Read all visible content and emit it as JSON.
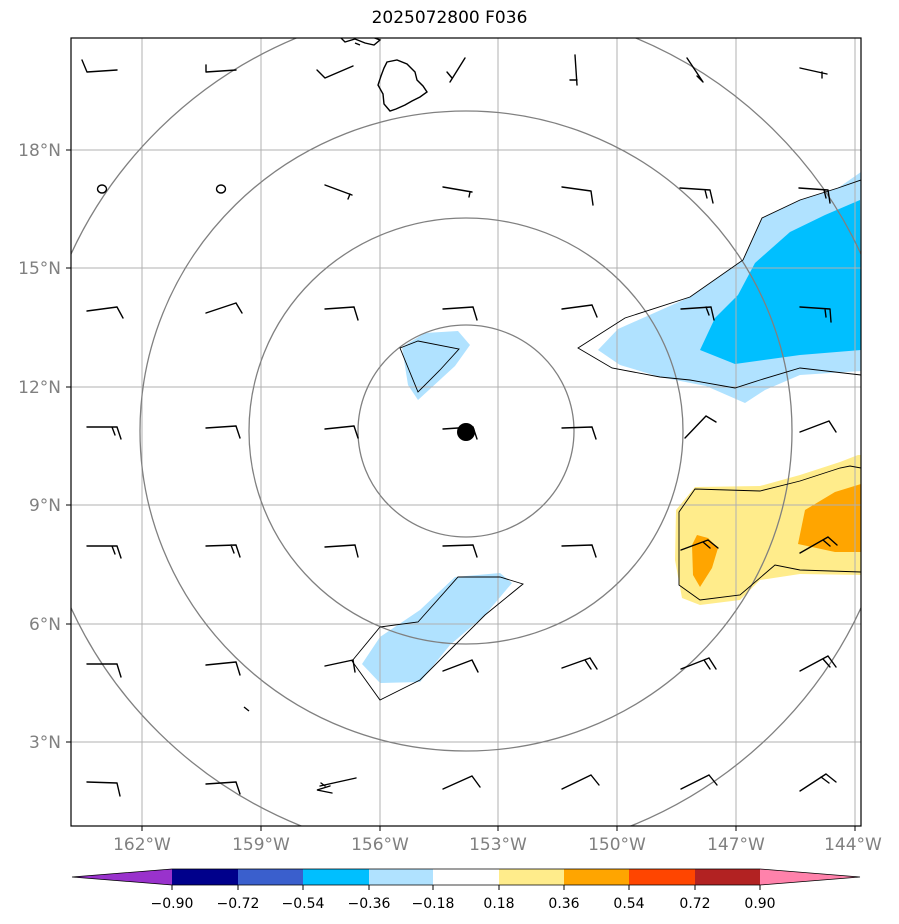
{
  "title": "2025072800 F036",
  "axes": {
    "lat_labels": [
      "3°N",
      "6°N",
      "9°N",
      "12°N",
      "15°N",
      "18°N"
    ],
    "lon_labels": [
      "162°W",
      "159°W",
      "156°W",
      "153°W",
      "150°W",
      "147°W",
      "144°W"
    ]
  },
  "colorbar": {
    "ticks": [
      "−0.90",
      "−0.72",
      "−0.54",
      "−0.36",
      "−0.18",
      "0.18",
      "0.36",
      "0.54",
      "0.72",
      "0.90"
    ],
    "colors": [
      "#9932cc",
      "#00008b",
      "#3a5fcd",
      "#00bfff",
      "#b0e2ff",
      "#ffffff",
      "#ffec8b",
      "#ffa500",
      "#ff4500",
      "#b22222",
      "#ff82ab"
    ]
  },
  "fill_colors": {
    "light_blue": "#b0e2ff",
    "blue": "#00bfff",
    "light_yellow": "#ffec8b",
    "orange": "#ffa500"
  },
  "storm_center": {
    "lat": 10.9,
    "lon": -153.9
  }
}
